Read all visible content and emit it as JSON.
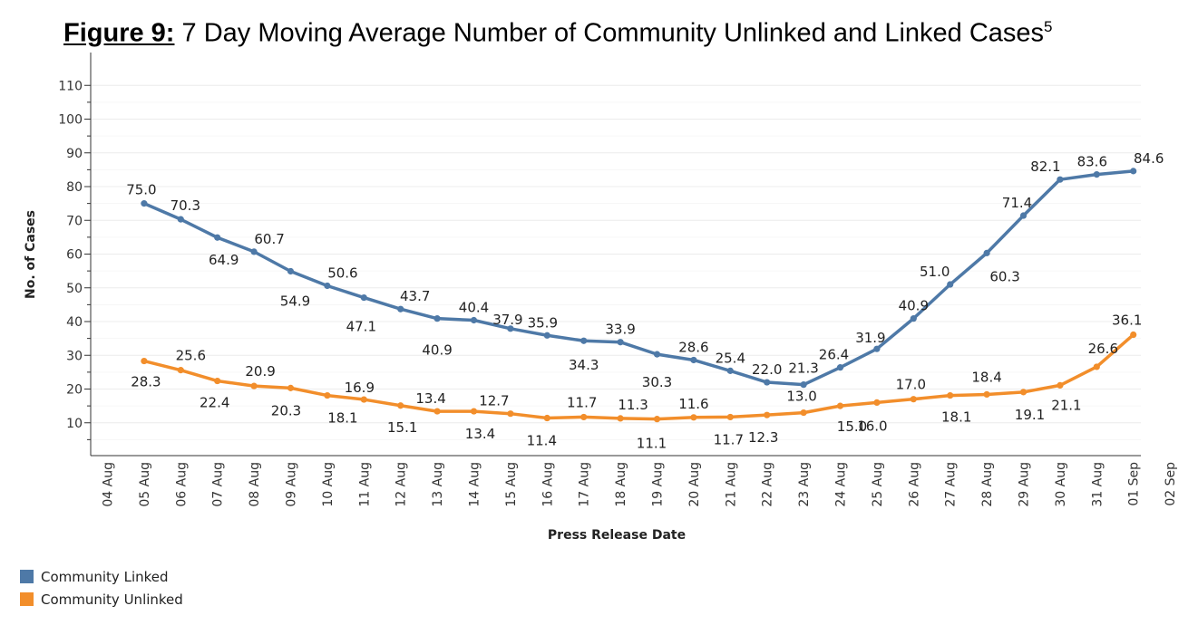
{
  "title": {
    "lead": "Figure 9:",
    "text": "7 Day Moving Average Number of Community Unlinked and Linked Cases",
    "footnote": "5"
  },
  "chart_data": {
    "type": "line",
    "title": "Figure 9: 7 Day Moving Average Number of Community Unlinked and Linked Cases",
    "xlabel": "Press Release Date",
    "ylabel": "No. of Cases",
    "ylim": [
      0,
      115
    ],
    "yticks": [
      10,
      20,
      30,
      40,
      50,
      60,
      70,
      80,
      90,
      100,
      110
    ],
    "categories": [
      "04 Aug",
      "05 Aug",
      "06 Aug",
      "07 Aug",
      "08 Aug",
      "09 Aug",
      "10 Aug",
      "11 Aug",
      "12 Aug",
      "13 Aug",
      "14 Aug",
      "15 Aug",
      "16 Aug",
      "17 Aug",
      "18 Aug",
      "19 Aug",
      "20 Aug",
      "21 Aug",
      "22 Aug",
      "23 Aug",
      "24 Aug",
      "25 Aug",
      "26 Aug",
      "27 Aug",
      "28 Aug",
      "29 Aug",
      "30 Aug",
      "31 Aug",
      "01 Sep",
      "02 Sep"
    ],
    "grid": true,
    "legend_position": "bottom-left",
    "series": [
      {
        "name": "Community Linked",
        "color": "#4e79a7",
        "values": [
          null,
          75.0,
          70.3,
          64.9,
          60.7,
          54.9,
          50.6,
          47.1,
          43.7,
          40.9,
          40.4,
          37.9,
          35.9,
          34.3,
          33.9,
          30.3,
          28.6,
          25.4,
          22.0,
          21.3,
          26.4,
          31.9,
          40.9,
          51.0,
          60.3,
          71.4,
          82.1,
          83.6,
          84.6,
          null
        ]
      },
      {
        "name": "Community Unlinked",
        "color": "#f28e2b",
        "values": [
          null,
          28.3,
          25.6,
          22.4,
          20.9,
          20.3,
          18.1,
          16.9,
          15.1,
          13.4,
          13.4,
          12.7,
          11.4,
          11.7,
          11.3,
          11.1,
          11.6,
          11.7,
          12.3,
          13.0,
          15.0,
          16.0,
          17.0,
          18.1,
          18.4,
          19.1,
          21.1,
          26.6,
          36.1,
          null
        ]
      }
    ]
  }
}
